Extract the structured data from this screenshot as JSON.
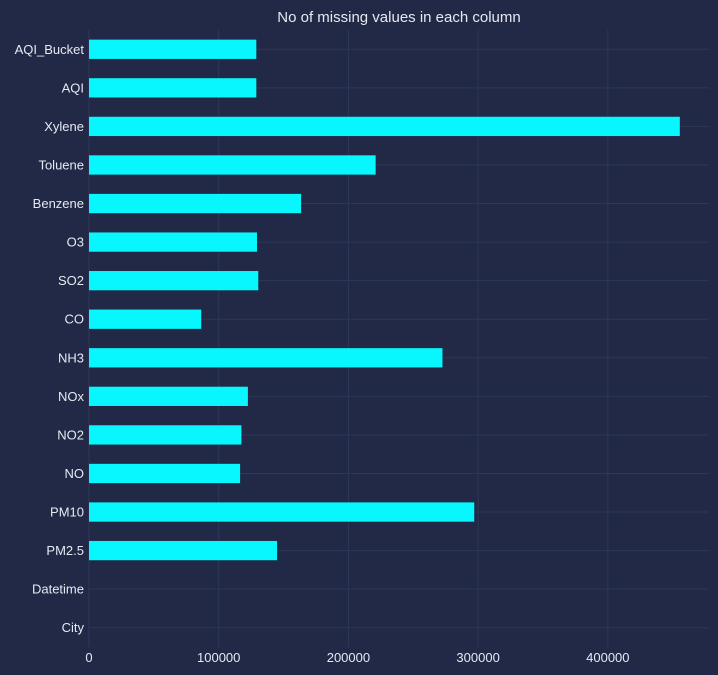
{
  "chart_data": {
    "type": "bar",
    "orientation": "horizontal",
    "title": "No of missing values in each column",
    "xlabel": "",
    "ylabel": "",
    "categories": [
      "City",
      "Datetime",
      "PM2.5",
      "PM10",
      "NO",
      "NO2",
      "NOx",
      "NH3",
      "CO",
      "SO2",
      "O3",
      "Benzene",
      "Toluene",
      "Xylene",
      "AQI",
      "AQI_Bucket"
    ],
    "values": [
      0,
      0,
      145000,
      297000,
      116500,
      117500,
      122500,
      272500,
      86500,
      130500,
      129500,
      163500,
      221000,
      455500,
      129000,
      129000
    ],
    "xlim": [
      0,
      478000
    ],
    "xticks": [
      0,
      100000,
      200000,
      300000,
      400000
    ],
    "xtick_labels": [
      "0",
      "100000",
      "200000",
      "300000",
      "400000"
    ],
    "grid": true,
    "colors": {
      "background": "#212946",
      "bar": "#08f7fe",
      "grid": "#2d3757",
      "text": "#e6e9f2"
    }
  }
}
